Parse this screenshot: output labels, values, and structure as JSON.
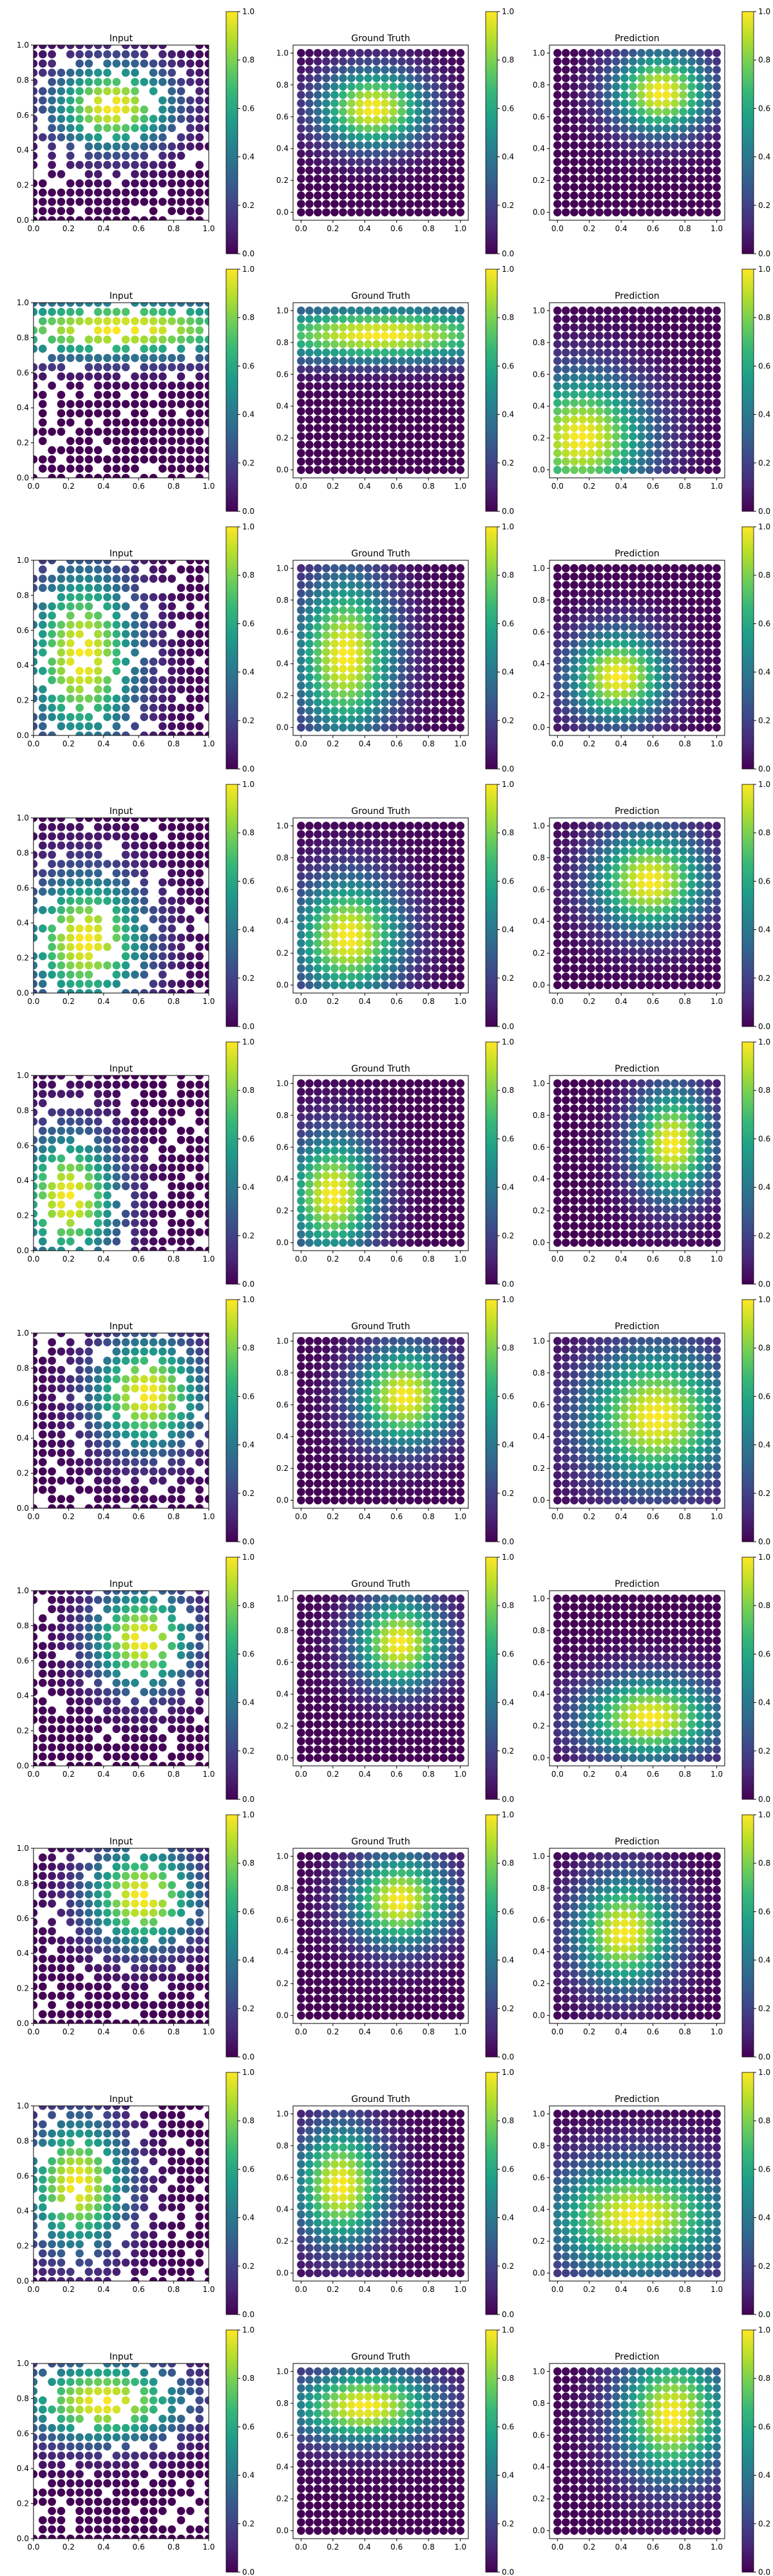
{
  "figure": {
    "panel_titles": [
      "Input",
      "Ground Truth",
      "Prediction"
    ],
    "x_ticks": [
      "0.0",
      "0.2",
      "0.4",
      "0.6",
      "0.8",
      "1.0"
    ],
    "y_ticks": [
      "0.0",
      "0.2",
      "0.4",
      "0.6",
      "0.8",
      "1.0"
    ],
    "colorbar_ticks": [
      "0.0",
      "0.2",
      "0.4",
      "0.6",
      "0.8",
      "1.0"
    ],
    "colormap": "viridis",
    "colormap_stops": [
      "#440154",
      "#482878",
      "#3e4989",
      "#31688e",
      "#26828e",
      "#1f9e89",
      "#35b779",
      "#6ece58",
      "#b5de2b",
      "#fde725"
    ]
  },
  "chart_data": {
    "type": "scatter",
    "grid_points_per_axis": 20,
    "xlim": [
      0,
      1
    ],
    "ylim": [
      0,
      1
    ],
    "value_range": [
      0,
      1
    ],
    "samples": [
      {
        "ground_truth": {
          "cx": 0.45,
          "cy": 0.65,
          "sx": 0.24,
          "sy": 0.17
        },
        "prediction": {
          "cx": 0.65,
          "cy": 0.75,
          "sx": 0.22,
          "sy": 0.18
        }
      },
      {
        "ground_truth": {
          "cx": 0.5,
          "cy": 0.85,
          "sx": 0.6,
          "sy": 0.12
        },
        "prediction": {
          "cx": 0.15,
          "cy": 0.2,
          "sx": 0.3,
          "sy": 0.28
        }
      },
      {
        "ground_truth": {
          "cx": 0.28,
          "cy": 0.45,
          "sx": 0.22,
          "sy": 0.35
        },
        "prediction": {
          "cx": 0.38,
          "cy": 0.32,
          "sx": 0.22,
          "sy": 0.2
        }
      },
      {
        "ground_truth": {
          "cx": 0.3,
          "cy": 0.3,
          "sx": 0.24,
          "sy": 0.26
        },
        "prediction": {
          "cx": 0.58,
          "cy": 0.65,
          "sx": 0.25,
          "sy": 0.22
        }
      },
      {
        "ground_truth": {
          "cx": 0.2,
          "cy": 0.3,
          "sx": 0.2,
          "sy": 0.26
        },
        "prediction": {
          "cx": 0.72,
          "cy": 0.62,
          "sx": 0.18,
          "sy": 0.24
        }
      },
      {
        "ground_truth": {
          "cx": 0.65,
          "cy": 0.65,
          "sx": 0.22,
          "sy": 0.22
        },
        "prediction": {
          "cx": 0.62,
          "cy": 0.52,
          "sx": 0.32,
          "sy": 0.3
        }
      },
      {
        "ground_truth": {
          "cx": 0.62,
          "cy": 0.72,
          "sx": 0.2,
          "sy": 0.2
        },
        "prediction": {
          "cx": 0.58,
          "cy": 0.25,
          "sx": 0.3,
          "sy": 0.18
        }
      },
      {
        "ground_truth": {
          "cx": 0.62,
          "cy": 0.72,
          "sx": 0.22,
          "sy": 0.2
        },
        "prediction": {
          "cx": 0.42,
          "cy": 0.52,
          "sx": 0.22,
          "sy": 0.24
        }
      },
      {
        "ground_truth": {
          "cx": 0.25,
          "cy": 0.55,
          "sx": 0.2,
          "sy": 0.26
        },
        "prediction": {
          "cx": 0.5,
          "cy": 0.35,
          "sx": 0.38,
          "sy": 0.25
        }
      },
      {
        "ground_truth": {
          "cx": 0.4,
          "cy": 0.78,
          "sx": 0.32,
          "sy": 0.16
        },
        "prediction": {
          "cx": 0.72,
          "cy": 0.72,
          "sx": 0.24,
          "sy": 0.28
        }
      }
    ]
  }
}
